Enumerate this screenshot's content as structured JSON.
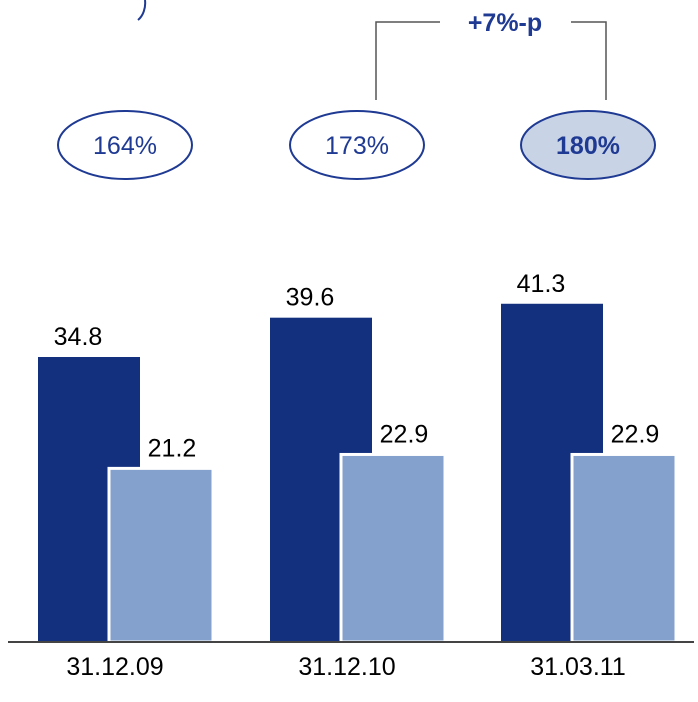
{
  "chart_data": {
    "type": "bar",
    "categories": [
      "31.12.09",
      "31.12.10",
      "31.03.11"
    ],
    "series": [
      {
        "values": [
          34.8,
          39.6,
          41.3
        ],
        "color": "#13307f"
      },
      {
        "values": [
          21.2,
          22.9,
          22.9
        ],
        "color": "#84a0cc"
      }
    ],
    "data_labels": [
      [
        "34.8",
        "39.6",
        "41.3"
      ],
      [
        "21.2",
        "22.9",
        "22.9"
      ]
    ],
    "ratios": [
      {
        "label": "164%",
        "highlighted": false
      },
      {
        "label": "173%",
        "highlighted": false
      },
      {
        "label": "180%",
        "highlighted": true
      }
    ],
    "change_annotation": "+7%-p",
    "ylim": [
      0,
      50
    ],
    "grid": false,
    "legend": "none"
  },
  "colors": {
    "ratio_text": "#1f3a93",
    "ratio_border": "#1f3a93",
    "ratio_highlight_fill": "#c9d3e6",
    "axis": "#444444"
  }
}
